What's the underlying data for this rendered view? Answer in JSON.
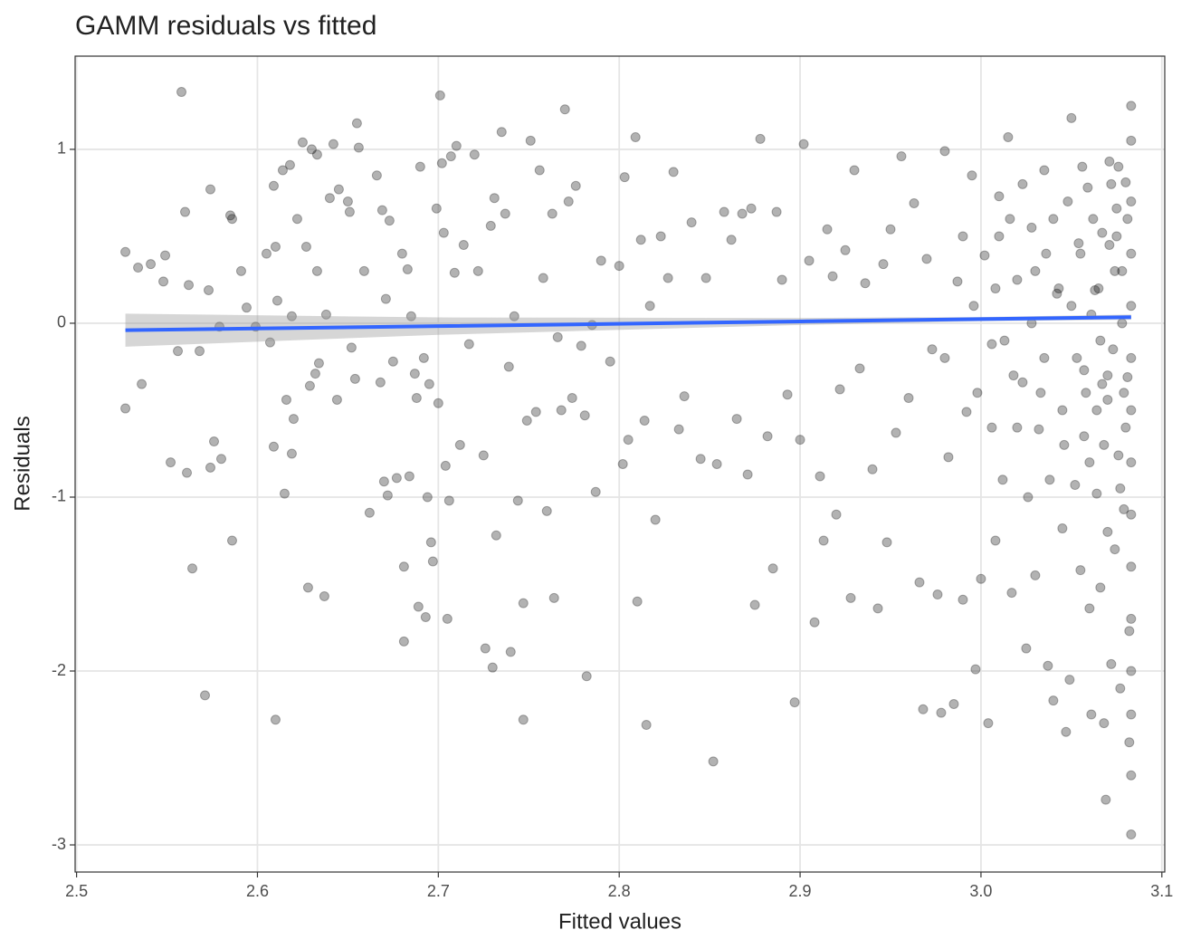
{
  "chart_data": {
    "type": "scatter",
    "title": "GAMM residuals vs fitted",
    "x_label": "Fitted values",
    "y_label": "Residuals",
    "xlim": [
      2.4992,
      3.1016
    ],
    "ylim": [
      -3.156,
      1.536
    ],
    "xticks": [
      2.5,
      2.6,
      2.7,
      2.8,
      2.9,
      {
        "value": 3,
        "label": "3.0"
      },
      3.1
    ],
    "yticks": [
      1,
      0,
      -1,
      -2,
      -3
    ],
    "grid": true,
    "color": "#000000",
    "alpha": 0.3,
    "x": [
      2.527,
      2.527,
      2.534,
      2.536,
      2.541,
      2.548,
      2.549,
      2.552,
      2.556,
      2.558,
      2.56,
      2.561,
      2.562,
      2.564,
      2.568,
      2.571,
      2.573,
      2.574,
      2.574,
      2.576,
      2.579,
      2.58,
      2.585,
      2.586,
      2.586,
      2.591,
      2.594,
      2.599,
      2.605,
      2.607,
      2.609,
      2.609,
      2.61,
      2.61,
      2.611,
      2.614,
      2.615,
      2.616,
      2.618,
      2.619,
      2.619,
      2.62,
      2.622,
      2.625,
      2.627,
      2.628,
      2.629,
      2.63,
      2.632,
      2.633,
      2.633,
      2.634,
      2.637,
      2.638,
      2.64,
      2.642,
      2.644,
      2.645,
      2.65,
      2.651,
      2.652,
      2.654,
      2.655,
      2.656,
      2.659,
      2.662,
      2.666,
      2.668,
      2.669,
      2.67,
      2.671,
      2.672,
      2.673,
      2.675,
      2.677,
      2.68,
      2.681,
      2.681,
      2.683,
      2.684,
      2.685,
      2.687,
      2.688,
      2.689,
      2.69,
      2.692,
      2.693,
      2.694,
      2.695,
      2.696,
      2.697,
      2.699,
      2.7,
      2.701,
      2.702,
      2.703,
      2.704,
      2.705,
      2.706,
      2.707,
      2.709,
      2.71,
      2.712,
      2.714,
      2.717,
      2.72,
      2.722,
      2.725,
      2.726,
      2.729,
      2.73,
      2.731,
      2.732,
      2.735,
      2.737,
      2.739,
      2.74,
      2.742,
      2.744,
      2.747,
      2.747,
      2.749,
      2.751,
      2.754,
      2.756,
      2.758,
      2.76,
      2.763,
      2.764,
      2.766,
      2.768,
      2.77,
      2.772,
      2.774,
      2.776,
      2.779,
      2.781,
      2.782,
      2.785,
      2.787,
      2.79,
      2.795,
      2.8,
      2.802,
      2.803,
      2.805,
      2.809,
      2.81,
      2.812,
      2.814,
      2.815,
      2.817,
      2.82,
      2.823,
      2.827,
      2.83,
      2.833,
      2.836,
      2.84,
      2.845,
      2.848,
      2.852,
      2.854,
      2.858,
      2.862,
      2.865,
      2.868,
      2.871,
      2.873,
      2.875,
      2.878,
      2.882,
      2.885,
      2.887,
      2.89,
      2.893,
      2.897,
      2.9,
      2.902,
      2.905,
      2.908,
      2.911,
      2.913,
      2.915,
      2.918,
      2.92,
      2.922,
      2.925,
      2.928,
      2.93,
      2.933,
      2.936,
      2.94,
      2.943,
      2.946,
      2.948,
      2.95,
      2.953,
      2.956,
      2.96,
      2.963,
      2.966,
      2.968,
      2.97,
      2.973,
      2.976,
      2.978,
      2.98,
      2.982,
      2.985,
      2.987,
      2.99,
      2.992,
      2.995,
      2.997,
      3.0,
      3.002,
      3.004,
      3.006,
      3.008,
      3.01,
      3.012,
      3.015,
      3.017,
      3.02,
      3.023,
      3.025,
      3.028,
      3.03,
      3.032,
      3.035,
      3.037,
      3.04,
      3.042,
      3.045,
      3.047,
      3.049,
      3.05,
      3.052,
      3.054,
      3.055,
      3.057,
      3.059,
      3.06,
      3.061,
      3.063,
      3.064,
      3.066,
      3.067,
      3.068,
      3.069,
      3.07,
      3.071,
      3.072,
      3.073,
      3.074,
      3.075,
      3.076,
      3.077,
      3.078,
      3.079,
      3.08,
      3.081,
      3.082,
      3.082,
      3.083,
      3.083,
      3.083,
      3.083,
      3.083,
      3.083,
      3.083,
      3.083,
      3.083,
      3.083,
      3.083,
      3.083,
      3.083,
      3.083,
      3.083,
      3.01,
      3.02,
      3.03,
      3.035,
      3.04,
      3.045,
      3.05,
      3.055,
      3.06,
      3.065,
      3.07,
      3.075,
      3.08,
      3.078,
      3.072,
      3.066,
      3.058,
      3.048,
      3.038,
      3.028,
      3.018,
      3.008,
      2.998,
      2.99,
      2.98,
      3.062,
      3.068,
      3.074,
      3.079,
      3.081,
      3.076,
      3.07,
      3.064,
      3.056,
      3.046,
      3.036,
      3.026,
      3.016,
      3.006,
      2.996,
      3.053,
      3.043,
      3.033,
      3.023,
      3.013,
      3.077,
      3.071,
      3.067,
      3.061,
      3.057
    ],
    "values": [
      0.41,
      -0.49,
      0.32,
      -0.35,
      0.34,
      0.24,
      0.39,
      -0.8,
      -0.16,
      1.33,
      0.64,
      -0.86,
      0.22,
      -1.41,
      -0.16,
      -2.14,
      0.19,
      0.77,
      -0.83,
      -0.68,
      -0.02,
      -0.78,
      0.62,
      -1.25,
      0.6,
      0.3,
      0.09,
      -0.02,
      0.4,
      -0.11,
      0.79,
      -0.71,
      -2.28,
      0.44,
      0.13,
      0.88,
      -0.98,
      -0.44,
      0.91,
      -0.75,
      0.04,
      -0.55,
      0.6,
      1.04,
      0.44,
      -1.52,
      -0.36,
      1.0,
      -0.29,
      0.3,
      0.97,
      -0.23,
      -1.57,
      0.05,
      0.72,
      1.03,
      -0.44,
      0.77,
      0.7,
      0.64,
      -0.14,
      -0.32,
      1.15,
      1.01,
      0.3,
      -1.09,
      0.85,
      -0.34,
      0.65,
      -0.91,
      0.14,
      -0.99,
      0.59,
      -0.22,
      -0.89,
      0.4,
      -1.4,
      -1.83,
      0.31,
      -0.88,
      0.04,
      -0.29,
      -0.43,
      -1.63,
      0.9,
      -0.2,
      -1.69,
      -1.0,
      -0.35,
      -1.26,
      -1.37,
      0.66,
      -0.46,
      1.31,
      0.92,
      0.52,
      -0.82,
      -1.7,
      -1.02,
      0.96,
      0.29,
      1.02,
      -0.7,
      0.45,
      -0.12,
      0.97,
      0.3,
      -0.76,
      -1.87,
      0.56,
      -1.98,
      0.72,
      -1.22,
      1.1,
      0.63,
      -0.25,
      -1.89,
      0.04,
      -1.02,
      -2.28,
      -1.61,
      -0.56,
      1.05,
      -0.51,
      0.88,
      0.26,
      -1.08,
      0.63,
      -1.58,
      -0.08,
      -0.5,
      1.23,
      0.7,
      -0.43,
      0.79,
      -0.13,
      -0.53,
      -2.03,
      -0.01,
      -0.97,
      0.36,
      -0.22,
      0.33,
      -0.81,
      0.84,
      -0.67,
      1.07,
      -1.6,
      0.48,
      -0.56,
      -2.31,
      0.1,
      -1.13,
      0.5,
      0.26,
      0.87,
      -0.61,
      -0.42,
      0.58,
      -0.78,
      0.26,
      -2.52,
      -0.81,
      0.64,
      0.48,
      -0.55,
      0.63,
      -0.87,
      0.66,
      -1.62,
      1.06,
      -0.65,
      -1.41,
      0.64,
      0.25,
      -0.41,
      -2.18,
      -0.67,
      1.03,
      0.36,
      -1.72,
      -0.88,
      -1.25,
      0.54,
      0.27,
      -1.1,
      -0.38,
      0.42,
      -1.58,
      0.88,
      -0.26,
      0.23,
      -0.84,
      -1.64,
      0.34,
      -1.26,
      0.54,
      -0.63,
      0.96,
      -0.43,
      0.69,
      -1.49,
      -2.22,
      0.37,
      -0.15,
      -1.56,
      -2.24,
      0.99,
      -0.77,
      -2.19,
      0.24,
      -1.59,
      -0.51,
      0.85,
      -1.99,
      -1.47,
      0.39,
      -2.3,
      -0.12,
      -1.25,
      0.73,
      -0.9,
      1.07,
      -1.55,
      0.25,
      -0.34,
      -1.87,
      0.55,
      -1.45,
      -0.61,
      0.88,
      -1.97,
      -2.17,
      0.17,
      -1.18,
      -2.35,
      -2.05,
      1.18,
      -0.93,
      0.46,
      -1.42,
      -0.27,
      0.78,
      -1.64,
      -2.25,
      0.19,
      -0.98,
      -1.52,
      0.52,
      -2.3,
      -2.74,
      -0.44,
      0.93,
      -1.96,
      -0.15,
      -1.3,
      0.66,
      -0.76,
      -2.1,
      0.3,
      -1.07,
      0.81,
      -0.31,
      -1.77,
      -2.41,
      1.25,
      1.05,
      0.7,
      0.4,
      0.1,
      -0.2,
      -0.5,
      -0.8,
      -1.1,
      -1.4,
      -1.7,
      -2.0,
      -2.25,
      -2.6,
      -2.94,
      0.5,
      -0.6,
      0.3,
      -0.2,
      0.6,
      -0.5,
      0.1,
      0.4,
      -0.8,
      0.2,
      -0.3,
      0.5,
      -0.6,
      0.0,
      0.8,
      -0.1,
      -0.4,
      0.7,
      -0.9,
      0.0,
      -0.3,
      0.2,
      -0.4,
      0.5,
      -0.2,
      0.6,
      -0.7,
      0.3,
      -0.4,
      0.6,
      0.9,
      -1.2,
      -0.5,
      0.9,
      -0.7,
      0.4,
      -1.0,
      0.6,
      -0.6,
      0.1,
      -0.2,
      0.2,
      -0.4,
      0.8,
      -0.1,
      -0.95,
      0.45,
      -0.35,
      0.05,
      -0.65
    ],
    "smooth": {
      "color": "#3366ff",
      "band_color": "#999999",
      "band_alpha": 0.4,
      "x": [
        2.527,
        2.7,
        2.9,
        3.0,
        3.083
      ],
      "values": [
        -0.04,
        -0.0167,
        0.0103,
        0.0238,
        0.035
      ],
      "lower": [
        -0.135,
        -0.0667,
        -0.0097,
        0.0118,
        0.02
      ],
      "upper": [
        0.055,
        0.0333,
        0.0303,
        0.0358,
        0.05
      ]
    }
  }
}
